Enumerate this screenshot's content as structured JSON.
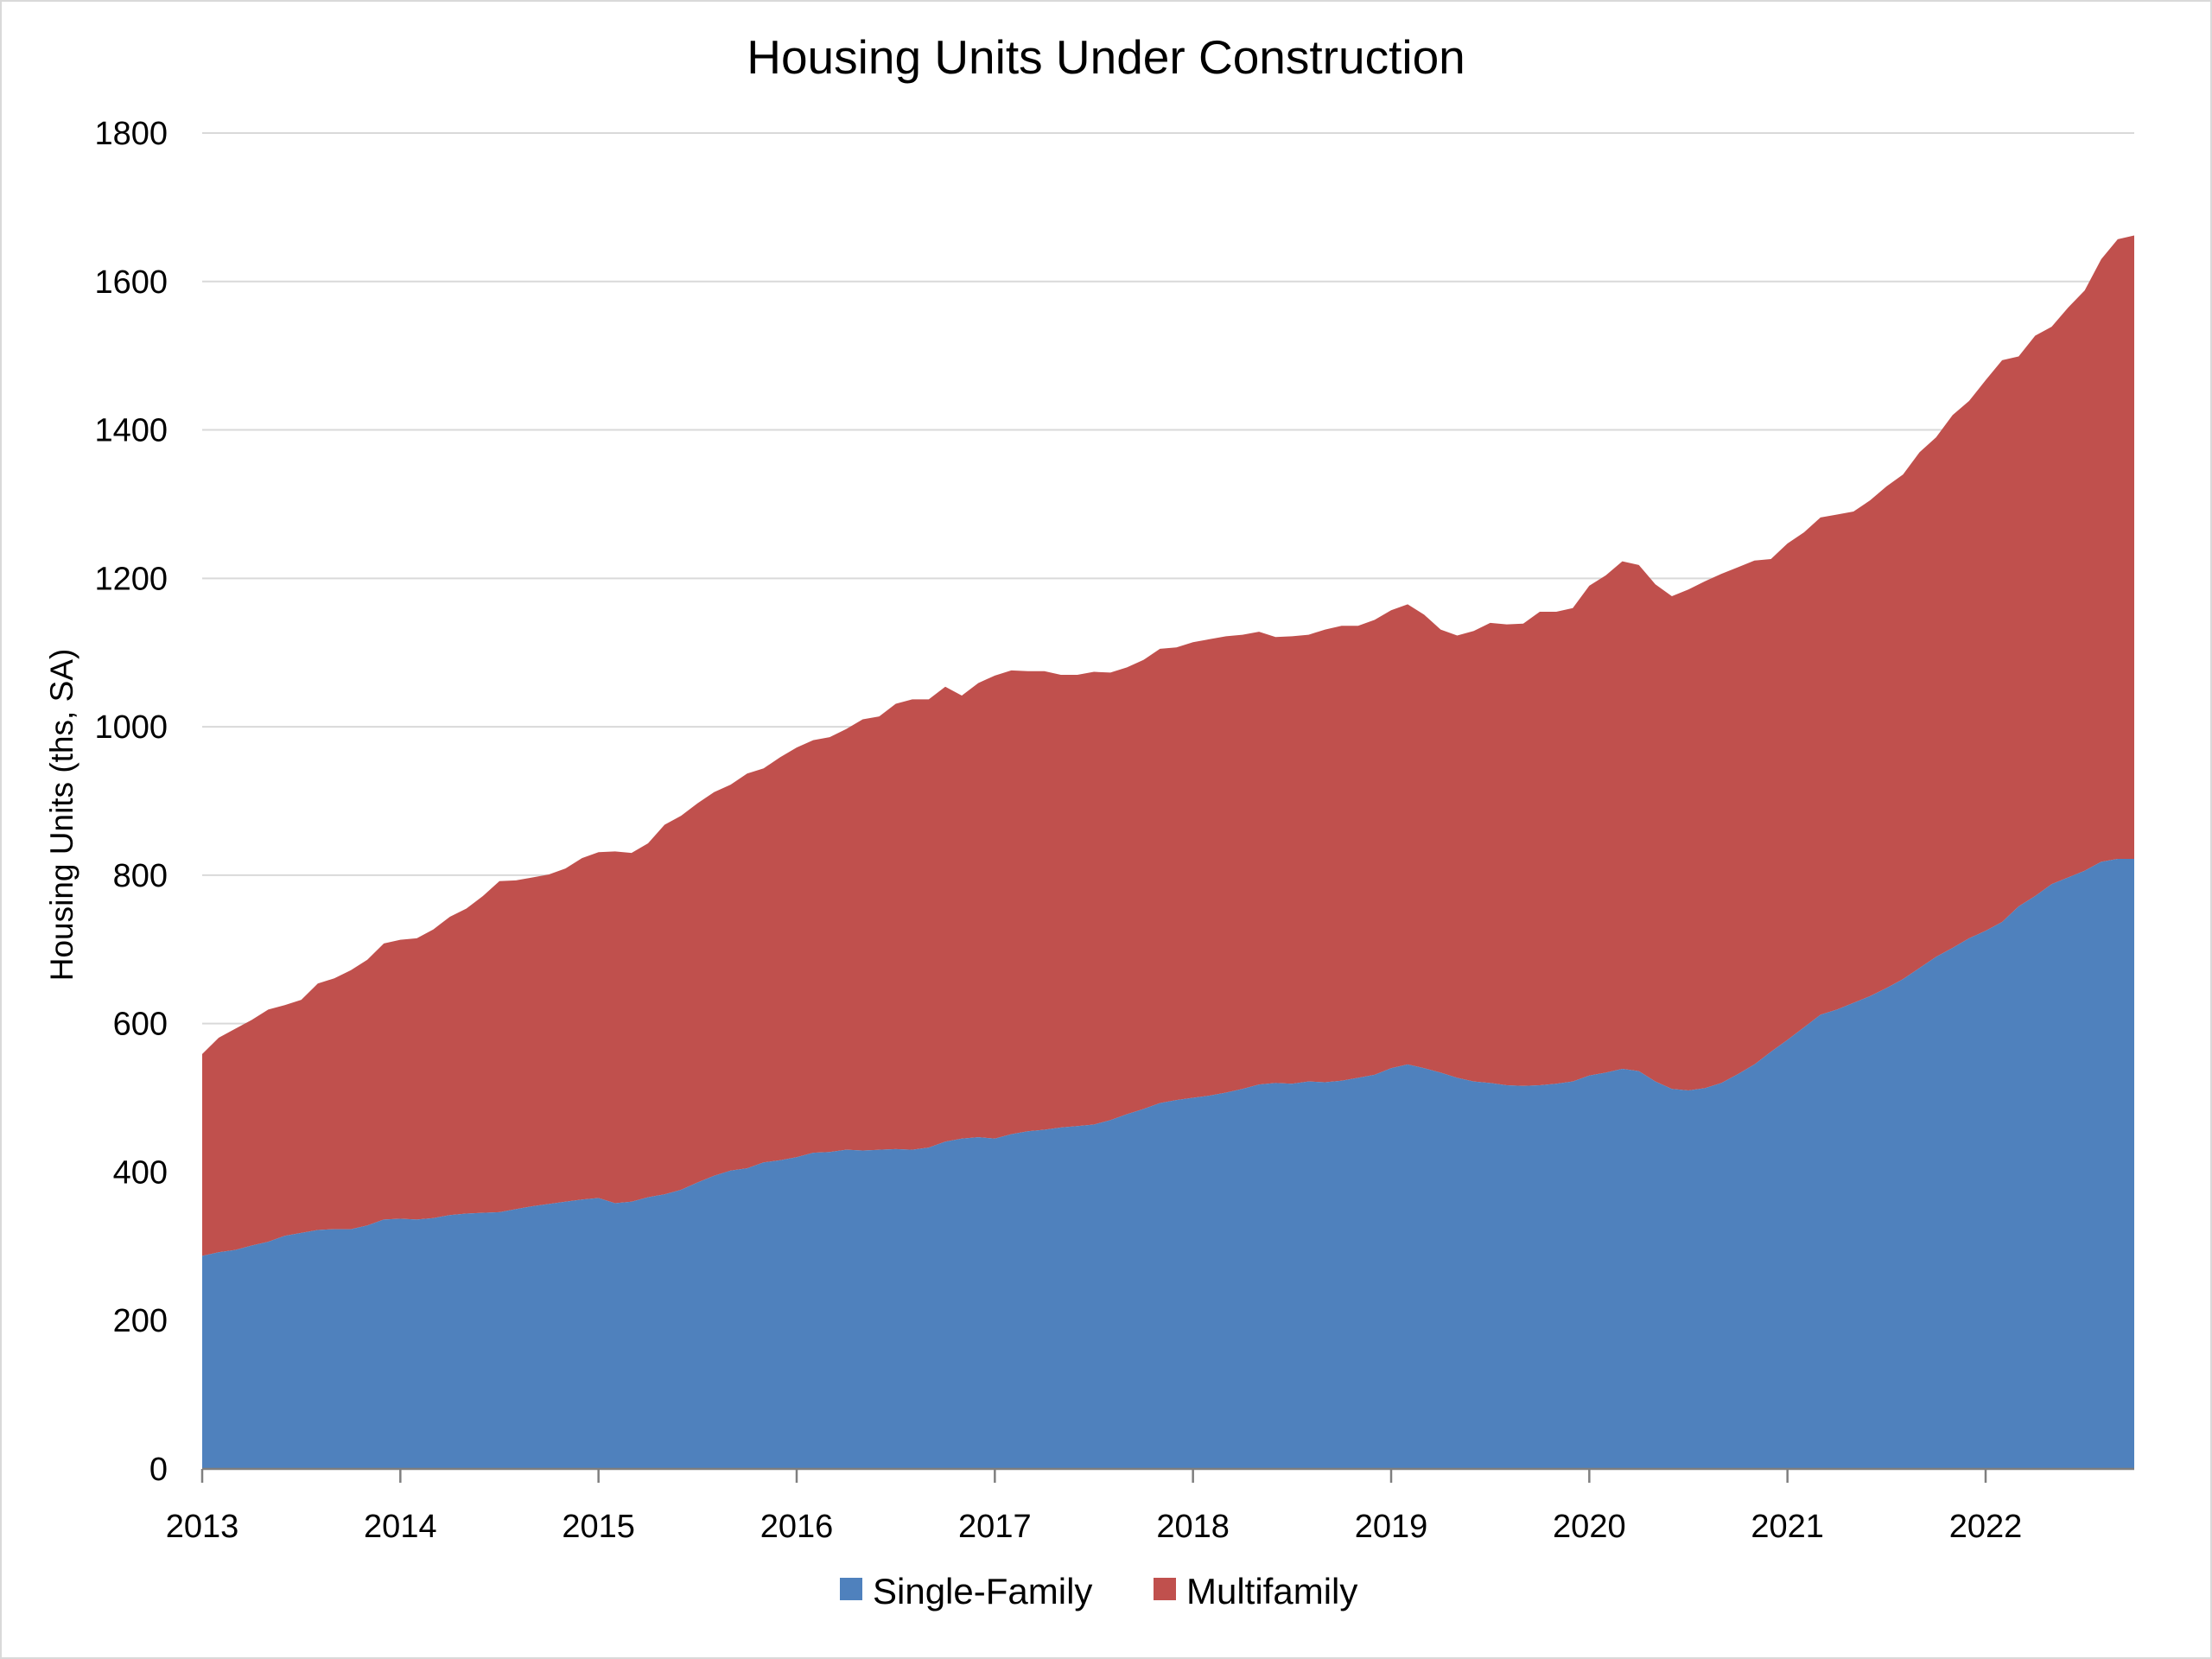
{
  "chart_data": {
    "type": "area",
    "stacked": true,
    "title": "Housing Units Under Construction",
    "xlabel": "",
    "ylabel": "Housing Units (ths, SA)",
    "ylim": [
      0,
      1800
    ],
    "yticks": [
      "0",
      "200",
      "400",
      "600",
      "800",
      "1000",
      "1200",
      "1400",
      "1600",
      "1800"
    ],
    "xticks": [
      "2013",
      "2014",
      "2015",
      "2016",
      "2017",
      "2018",
      "2019",
      "2020",
      "2021",
      "2022"
    ],
    "grid": true,
    "legend_position": "bottom",
    "x_start": "2013-01",
    "x_end": "2022-05",
    "frequency": "monthly",
    "series": [
      {
        "name": "Single-Family",
        "color": "#4f81bd",
        "values": [
          287,
          292,
          295,
          301,
          306,
          314,
          318,
          322,
          323,
          323,
          328,
          336,
          337,
          336,
          338,
          342,
          344,
          345,
          346,
          350,
          354,
          357,
          360,
          363,
          365,
          358,
          360,
          366,
          370,
          376,
          386,
          395,
          402,
          405,
          413,
          416,
          420,
          426,
          427,
          430,
          429,
          430,
          431,
          430,
          433,
          441,
          445,
          447,
          445,
          451,
          455,
          457,
          460,
          462,
          464,
          470,
          478,
          485,
          493,
          497,
          500,
          503,
          507,
          512,
          518,
          520,
          519,
          522,
          521,
          523,
          527,
          531,
          540,
          545,
          540,
          534,
          527,
          522,
          520,
          517,
          516,
          517,
          519,
          522,
          530,
          534,
          539,
          536,
          522,
          512,
          510,
          513,
          520,
          532,
          545,
          562,
          578,
          595,
          612,
          619,
          628,
          637,
          648,
          660,
          675,
          690,
          702,
          715,
          725,
          737,
          758,
          772,
          788,
          797,
          806,
          818,
          822,
          822
        ]
      },
      {
        "name": "Multifamily",
        "color": "#c0504d",
        "values": [
          272,
          289,
          298,
          304,
          313,
          311,
          314,
          332,
          338,
          349,
          358,
          372,
          376,
          379,
          389,
          402,
          411,
          427,
          446,
          443,
          443,
          444,
          449,
          460,
          466,
          474,
          470,
          477,
          498,
          504,
          511,
          517,
          520,
          532,
          531,
          543,
          552,
          556,
          559,
          567,
          581,
          584,
          600,
          607,
          604,
          613,
          597,
          612,
          624,
          625,
          620,
          618,
          610,
          608,
          610,
          603,
          602,
          605,
          612,
          610,
          614,
          615,
          615,
          612,
          610,
          601,
          603,
          602,
          610,
          613,
          609,
          613,
          617,
          620,
          611,
          597,
          596,
          607,
          620,
          621,
          623,
          638,
          636,
          638,
          660,
          670,
          684,
          682,
          670,
          664,
          675,
          683,
          686,
          683,
          679,
          664,
          669,
          667,
          670,
          667,
          662,
          668,
          676,
          680,
          695,
          700,
          718,
          724,
          742,
          757,
          741,
          755,
          751,
          768,
          782,
          812,
          835,
          840
        ]
      }
    ]
  }
}
